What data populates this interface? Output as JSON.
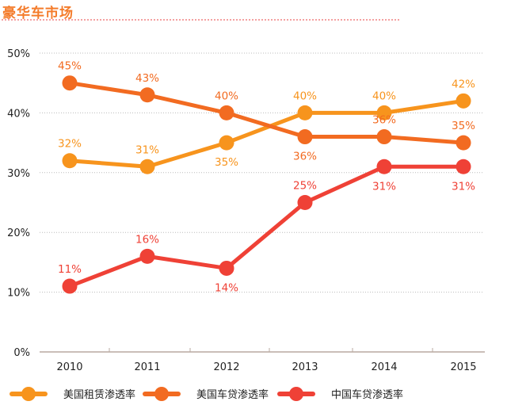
{
  "header": {
    "title": "豪华车市场"
  },
  "chart_data": {
    "type": "line",
    "title": "",
    "categories": [
      "2010",
      "2011",
      "2012",
      "2013",
      "2014",
      "2015"
    ],
    "ylim": [
      0,
      50
    ],
    "yticks": [
      "0%",
      "10%",
      "20%",
      "30%",
      "40%",
      "50%"
    ],
    "grid": true,
    "legend_position": "bottom",
    "series": [
      {
        "name": "美国租赁渗透率",
        "color": "#F7941D",
        "values": [
          32,
          31,
          35,
          40,
          40,
          42
        ],
        "labels": [
          "32%",
          "31%",
          "35%",
          "40%",
          "40%",
          "42%"
        ],
        "label_pos": [
          "above",
          "above",
          "below",
          "above",
          "above",
          "above"
        ]
      },
      {
        "name": "美国车贷渗透率",
        "color": "#F26B21",
        "values": [
          45,
          43,
          40,
          36,
          36,
          35
        ],
        "labels": [
          "45%",
          "43%",
          "40%",
          "36%",
          "36%",
          "35%"
        ],
        "label_pos": [
          "above",
          "above",
          "above",
          "below",
          "above",
          "above"
        ]
      },
      {
        "name": "中国车贷渗透率",
        "color": "#EF4136",
        "values": [
          11,
          16,
          14,
          25,
          31,
          31
        ],
        "labels": [
          "11%",
          "16%",
          "14%",
          "25%",
          "31%",
          "31%"
        ],
        "label_pos": [
          "above",
          "above",
          "below",
          "above",
          "below",
          "below"
        ]
      }
    ]
  }
}
